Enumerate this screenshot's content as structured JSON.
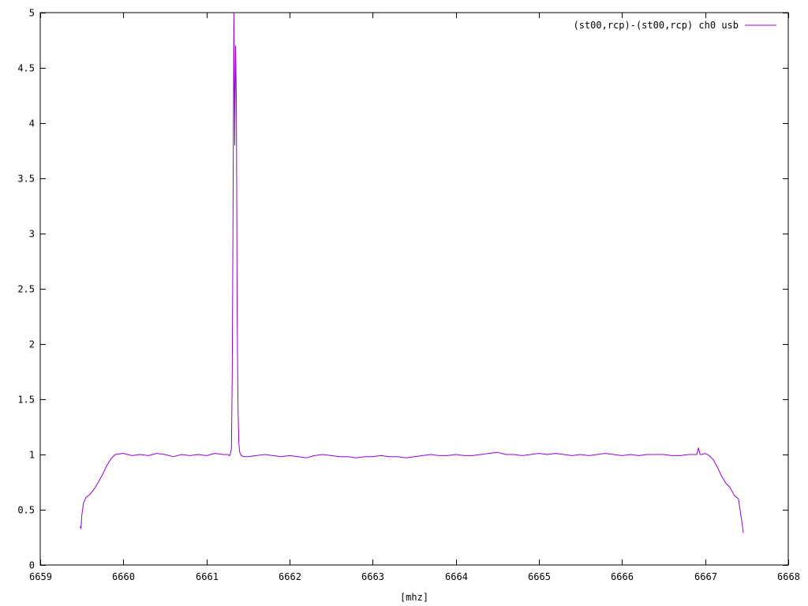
{
  "chart_data": {
    "type": "line",
    "title": "",
    "xlabel": "[mhz]",
    "ylabel": "",
    "xlim": [
      6659,
      6668
    ],
    "ylim": [
      0,
      5
    ],
    "x_ticks": [
      "6659",
      "6660",
      "6661",
      "6662",
      "6663",
      "6664",
      "6665",
      "6666",
      "6667",
      "6668"
    ],
    "y_ticks": [
      "0",
      "0.5",
      "1",
      "1.5",
      "2",
      "2.5",
      "3",
      "3.5",
      "4",
      "4.5",
      "5"
    ],
    "grid": false,
    "legend_position": "top-right",
    "series": [
      {
        "name": "(st00,rcp)-(st00,rcp) ch0 usb",
        "color": "#9400d3",
        "x": [
          6659.48,
          6659.49,
          6659.5,
          6659.52,
          6659.55,
          6659.6,
          6659.65,
          6659.7,
          6659.75,
          6659.8,
          6659.85,
          6659.9,
          6660.0,
          6660.1,
          6660.2,
          6660.3,
          6660.4,
          6660.5,
          6660.6,
          6660.7,
          6660.8,
          6660.9,
          6661.0,
          6661.1,
          6661.2,
          6661.25,
          6661.28,
          6661.3,
          6661.31,
          6661.32,
          6661.33,
          6661.34,
          6661.35,
          6661.36,
          6661.37,
          6661.38,
          6661.39,
          6661.4,
          6661.42,
          6661.45,
          6661.5,
          6661.6,
          6661.7,
          6661.8,
          6661.9,
          6662.0,
          6662.1,
          6662.2,
          6662.3,
          6662.4,
          6662.5,
          6662.6,
          6662.7,
          6662.8,
          6662.9,
          6663.0,
          6663.1,
          6663.2,
          6663.3,
          6663.4,
          6663.5,
          6663.6,
          6663.7,
          6663.8,
          6663.9,
          6664.0,
          6664.1,
          6664.2,
          6664.3,
          6664.4,
          6664.5,
          6664.6,
          6664.7,
          6664.8,
          6664.9,
          6665.0,
          6665.1,
          6665.2,
          6665.3,
          6665.4,
          6665.5,
          6665.6,
          6665.7,
          6665.8,
          6665.9,
          6666.0,
          6666.1,
          6666.2,
          6666.3,
          6666.4,
          6666.5,
          6666.6,
          6666.7,
          6666.8,
          6666.9,
          6666.92,
          6666.94,
          6666.96,
          6667.0,
          6667.05,
          6667.1,
          6667.15,
          6667.2,
          6667.25,
          6667.3,
          6667.35,
          6667.4,
          6667.42,
          6667.44,
          6667.46
        ],
        "y": [
          0.35,
          0.33,
          0.45,
          0.56,
          0.61,
          0.64,
          0.69,
          0.75,
          0.82,
          0.9,
          0.96,
          1.0,
          1.01,
          0.99,
          1.0,
          0.99,
          1.01,
          1.0,
          0.98,
          1.0,
          0.99,
          1.0,
          0.99,
          1.01,
          1.0,
          1.0,
          0.99,
          1.05,
          1.7,
          3.3,
          5.1,
          3.8,
          4.7,
          4.2,
          2.2,
          1.4,
          1.1,
          1.02,
          0.99,
          0.98,
          0.98,
          0.99,
          1.0,
          0.99,
          0.98,
          0.99,
          0.98,
          0.97,
          0.99,
          1.0,
          0.99,
          0.98,
          0.98,
          0.97,
          0.98,
          0.98,
          0.99,
          0.98,
          0.98,
          0.97,
          0.98,
          0.99,
          1.0,
          0.99,
          0.99,
          1.0,
          0.99,
          0.99,
          1.0,
          1.01,
          1.02,
          1.0,
          1.0,
          0.99,
          1.0,
          1.01,
          1.0,
          1.01,
          1.0,
          0.99,
          1.0,
          0.99,
          1.0,
          1.01,
          1.0,
          0.99,
          1.0,
          0.99,
          1.0,
          1.0,
          1.0,
          0.99,
          0.99,
          1.0,
          1.0,
          1.06,
          1.0,
          1.0,
          1.01,
          0.99,
          0.95,
          0.88,
          0.8,
          0.74,
          0.7,
          0.63,
          0.6,
          0.5,
          0.4,
          0.29
        ]
      }
    ]
  }
}
